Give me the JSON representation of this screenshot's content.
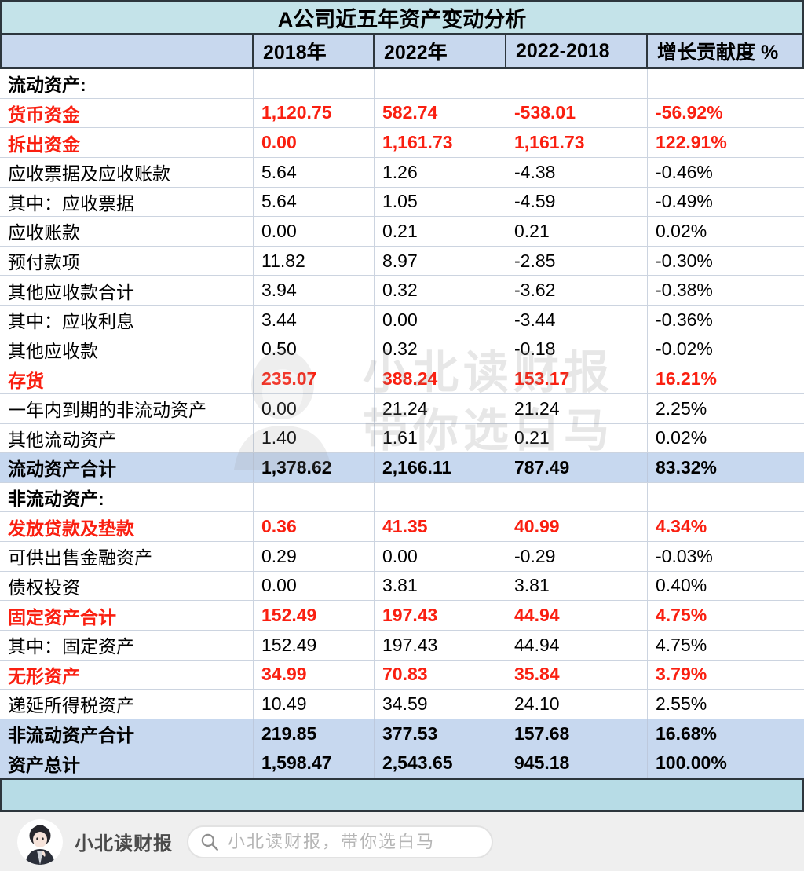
{
  "title": "A公司近五年资产变动分析",
  "chart_data": {
    "type": "table",
    "title": "A公司近五年资产变动分析",
    "columns": [
      "",
      "2018年",
      "2022年",
      "2022-2018",
      "增长贡献度 %"
    ],
    "rows": [
      {
        "label": "流动资产:",
        "style": "section",
        "values": [
          "",
          "",
          "",
          ""
        ]
      },
      {
        "label": "货币资金",
        "style": "red",
        "values": [
          "1,120.75",
          "582.74",
          "-538.01",
          "-56.92%"
        ]
      },
      {
        "label": "拆出资金",
        "style": "red",
        "values": [
          "0.00",
          "1,161.73",
          "1,161.73",
          "122.91%"
        ]
      },
      {
        "label": "应收票据及应收账款",
        "style": "normal",
        "values": [
          "5.64",
          "1.26",
          "-4.38",
          "-0.46%"
        ]
      },
      {
        "label": "其中：应收票据",
        "style": "normal",
        "values": [
          "5.64",
          "1.05",
          "-4.59",
          "-0.49%"
        ]
      },
      {
        "label": "应收账款",
        "style": "normal",
        "values": [
          "0.00",
          "0.21",
          "0.21",
          "0.02%"
        ]
      },
      {
        "label": "预付款项",
        "style": "normal",
        "values": [
          "11.82",
          "8.97",
          "-2.85",
          "-0.30%"
        ]
      },
      {
        "label": "其他应收款合计",
        "style": "normal",
        "values": [
          "3.94",
          "0.32",
          "-3.62",
          "-0.38%"
        ]
      },
      {
        "label": "其中：应收利息",
        "style": "normal",
        "values": [
          "3.44",
          "0.00",
          "-3.44",
          "-0.36%"
        ]
      },
      {
        "label": "其他应收款",
        "style": "normal",
        "values": [
          "0.50",
          "0.32",
          "-0.18",
          "-0.02%"
        ]
      },
      {
        "label": "存货",
        "style": "red",
        "values": [
          "235.07",
          "388.24",
          "153.17",
          "16.21%"
        ]
      },
      {
        "label": "一年内到期的非流动资产",
        "style": "normal",
        "values": [
          "0.00",
          "21.24",
          "21.24",
          "2.25%"
        ]
      },
      {
        "label": "其他流动资产",
        "style": "normal",
        "values": [
          "1.40",
          "1.61",
          "0.21",
          "0.02%"
        ]
      },
      {
        "label": "流动资产合计",
        "style": "total",
        "values": [
          "1,378.62",
          "2,166.11",
          "787.49",
          "83.32%"
        ]
      },
      {
        "label": "非流动资产:",
        "style": "section",
        "values": [
          "",
          "",
          "",
          ""
        ]
      },
      {
        "label": "发放贷款及垫款",
        "style": "red",
        "values": [
          "0.36",
          "41.35",
          "40.99",
          "4.34%"
        ]
      },
      {
        "label": "可供出售金融资产",
        "style": "normal",
        "values": [
          "0.29",
          "0.00",
          "-0.29",
          "-0.03%"
        ]
      },
      {
        "label": "债权投资",
        "style": "normal",
        "values": [
          "0.00",
          "3.81",
          "3.81",
          "0.40%"
        ]
      },
      {
        "label": "固定资产合计",
        "style": "red",
        "values": [
          "152.49",
          "197.43",
          "44.94",
          "4.75%"
        ]
      },
      {
        "label": "其中：固定资产",
        "style": "normal",
        "values": [
          "152.49",
          "197.43",
          "44.94",
          "4.75%"
        ]
      },
      {
        "label": "无形资产",
        "style": "red",
        "values": [
          "34.99",
          "70.83",
          "35.84",
          "3.79%"
        ]
      },
      {
        "label": "递延所得税资产",
        "style": "normal",
        "values": [
          "10.49",
          "34.59",
          "24.10",
          "2.55%"
        ]
      },
      {
        "label": "非流动资产合计",
        "style": "total",
        "values": [
          "219.85",
          "377.53",
          "157.68",
          "16.68%"
        ]
      },
      {
        "label": "资产总计",
        "style": "total",
        "values": [
          "1,598.47",
          "2,543.65",
          "945.18",
          "100.00%"
        ]
      }
    ]
  },
  "watermark": {
    "line1": "小北读财报",
    "line2": "带你选白马"
  },
  "footer": {
    "brand": "小北读财报",
    "search_placeholder": "小北读财报，带你选白马"
  },
  "colors": {
    "title_bg": "#c4e3e9",
    "header_bg": "#c8d8ee",
    "total_row_bg": "#c7d8ef",
    "band_bg": "#b7dce6",
    "accent_red": "#fa1f10",
    "dark_border": "#2d363d",
    "grid_line": "#ccd4e0",
    "footer_bg": "#efefef"
  }
}
